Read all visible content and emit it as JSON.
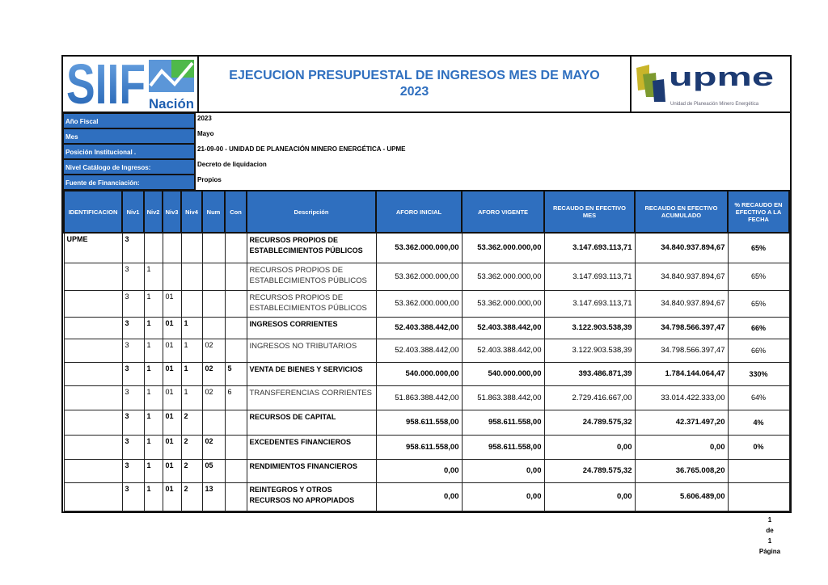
{
  "header": {
    "title_line1": "EJECUCION PRESUPUESTAL DE INGRESOS MES DE MAYO",
    "title_line2": "2023",
    "logo_left": "SIIF Nación",
    "logo_right": "upme",
    "logo_right_sub": "Unidad de Planeación Minero Energética"
  },
  "info": [
    {
      "label": "Año Fiscal",
      "value": "2023"
    },
    {
      "label": "Mes",
      "value": "Mayo"
    },
    {
      "label": "Posición Institucional .",
      "value": "21-09-00 - UNIDAD DE PLANEACIÓN MINERO ENERGÉTICA - UPME"
    },
    {
      "label": "Nivel Catálogo de Ingresos:",
      "value": "Decreto de liquidacion"
    },
    {
      "label": "Fuente de Financiación:",
      "value": "Propios"
    }
  ],
  "columns": [
    "IDENTIFICACION",
    "Niv1",
    "Niv2",
    "Niv3",
    "Niv4",
    "Num",
    "Con",
    "Descripción",
    "AFORO INICIAL",
    "AFORO VIGENTE",
    "RECAUDO EN EFECTIVO MES",
    "RECAUDO EN EFECTIVO ACUMULADO",
    "% RECAUDO EN EFECTIVO A LA FECHA"
  ],
  "rows": [
    {
      "bold": true,
      "c": [
        "UPME",
        "3",
        "",
        "",
        "",
        "",
        "",
        "RECURSOS PROPIOS DE ESTABLECIMIENTOS PÚBLICOS",
        "53.362.000.000,00",
        "53.362.000.000,00",
        "3.147.693.113,71",
        "34.840.937.894,67",
        "65%"
      ]
    },
    {
      "bold": false,
      "c": [
        "",
        "3",
        "1",
        "",
        "",
        "",
        "",
        "RECURSOS PROPIOS DE ESTABLECIMIENTOS PÚBLICOS",
        "53.362.000.000,00",
        "53.362.000.000,00",
        "3.147.693.113,71",
        "34.840.937.894,67",
        "65%"
      ]
    },
    {
      "bold": false,
      "c": [
        "",
        "3",
        "1",
        "01",
        "",
        "",
        "",
        "RECURSOS PROPIOS DE ESTABLECIMIENTOS PÚBLICOS",
        "53.362.000.000,00",
        "53.362.000.000,00",
        "3.147.693.113,71",
        "34.840.937.894,67",
        "65%"
      ]
    },
    {
      "bold": true,
      "c": [
        "",
        "3",
        "1",
        "01",
        "1",
        "",
        "",
        "INGRESOS CORRIENTES",
        "52.403.388.442,00",
        "52.403.388.442,00",
        "3.122.903.538,39",
        "34.798.566.397,47",
        "66%"
      ]
    },
    {
      "bold": false,
      "c": [
        "",
        "3",
        "1",
        "01",
        "1",
        "02",
        "",
        "INGRESOS NO TRIBUTARIOS",
        "52.403.388.442,00",
        "52.403.388.442,00",
        "3.122.903.538,39",
        "34.798.566.397,47",
        "66%"
      ]
    },
    {
      "bold": true,
      "c": [
        "",
        "3",
        "1",
        "01",
        "1",
        "02",
        "5",
        "VENTA DE BIENES Y SERVICIOS",
        "540.000.000,00",
        "540.000.000,00",
        "393.486.871,39",
        "1.784.144.064,47",
        "330%"
      ]
    },
    {
      "bold": false,
      "c": [
        "",
        "3",
        "1",
        "01",
        "1",
        "02",
        "6",
        "TRANSFERENCIAS CORRIENTES",
        "51.863.388.442,00",
        "51.863.388.442,00",
        "2.729.416.667,00",
        "33.014.422.333,00",
        "64%"
      ]
    },
    {
      "bold": true,
      "c": [
        "",
        "3",
        "1",
        "01",
        "2",
        "",
        "",
        "RECURSOS DE CAPITAL",
        "958.611.558,00",
        "958.611.558,00",
        "24.789.575,32",
        "42.371.497,20",
        "4%"
      ]
    },
    {
      "bold": true,
      "c": [
        "",
        "3",
        "1",
        "01",
        "2",
        "02",
        "",
        "EXCEDENTES FINANCIEROS",
        "958.611.558,00",
        "958.611.558,00",
        "0,00",
        "0,00",
        "0%"
      ]
    },
    {
      "bold": true,
      "c": [
        "",
        "3",
        "1",
        "01",
        "2",
        "05",
        "",
        "RENDIMIENTOS FINANCIEROS",
        "0,00",
        "0,00",
        "24.789.575,32",
        "36.765.008,20",
        ""
      ]
    },
    {
      "bold": true,
      "c": [
        "",
        "3",
        "1",
        "01",
        "2",
        "13",
        "",
        "REINTEGROS Y OTROS RECURSOS NO APROPIADOS",
        "0,00",
        "0,00",
        "0,00",
        "5.606.489,00",
        ""
      ]
    }
  ],
  "pager": {
    "current": "1",
    "of": "de",
    "total": "1",
    "label": "Página"
  },
  "colors": {
    "header_blue": "#2f6fbf",
    "upme_navy": "#1d3b73"
  }
}
